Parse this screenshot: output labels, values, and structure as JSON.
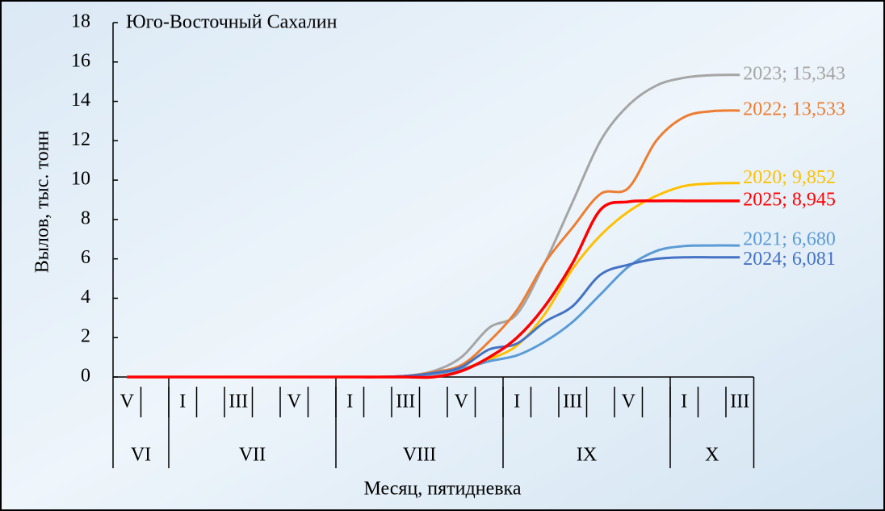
{
  "chart_data": {
    "type": "line",
    "title": "Юго-Восточный Сахалин",
    "xlabel": "Месяц, пятидневка",
    "ylabel": "Вылов, тыс. тонн",
    "categories": [
      "V",
      null,
      "I",
      null,
      "III",
      null,
      "V",
      null,
      "I",
      null,
      "III",
      null,
      "V",
      null,
      "I",
      null,
      "III",
      null,
      "V",
      null,
      "I",
      null,
      "III"
    ],
    "months": [
      "VI",
      "VI",
      "VII",
      "VII",
      "VII",
      "VII",
      "VII",
      "VII",
      "VIII",
      "VIII",
      "VIII",
      "VIII",
      "VIII",
      "VIII",
      "IX",
      "IX",
      "IX",
      "IX",
      "IX",
      "IX",
      "X",
      "X",
      "X"
    ],
    "ylim": [
      0,
      18
    ],
    "yticks": [
      0,
      2,
      4,
      6,
      8,
      10,
      12,
      14,
      16,
      18
    ],
    "series": [
      {
        "label": "2023; 15,343",
        "color": "#a5a5a5",
        "values": [
          0,
          0,
          0,
          0,
          0,
          0,
          0,
          0,
          0,
          0,
          0.05,
          0.3,
          1.0,
          2.5,
          3.2,
          5.8,
          8.9,
          12.0,
          13.8,
          14.8,
          15.2,
          15.33,
          15.343
        ]
      },
      {
        "label": "2022; 13,533",
        "color": "#ed7d31",
        "values": [
          0,
          0,
          0,
          0,
          0,
          0,
          0,
          0,
          0,
          0,
          0.05,
          0.25,
          0.6,
          1.8,
          3.4,
          5.8,
          7.6,
          9.3,
          9.6,
          12.0,
          13.2,
          13.5,
          13.533
        ]
      },
      {
        "label": "2020; 9,852",
        "color": "#ffc000",
        "values": [
          0,
          0,
          0,
          0,
          0,
          0,
          0,
          0,
          0,
          0,
          0.03,
          0.15,
          0.4,
          0.9,
          1.6,
          3.2,
          5.5,
          7.2,
          8.4,
          9.2,
          9.7,
          9.83,
          9.852
        ]
      },
      {
        "label": "2021; 6,680",
        "color": "#5b9bd5",
        "values": [
          0,
          0,
          0,
          0,
          0,
          0,
          0,
          0,
          0,
          0,
          0.03,
          0.15,
          0.4,
          0.8,
          1.1,
          1.8,
          2.8,
          4.2,
          5.6,
          6.4,
          6.65,
          6.68,
          6.68
        ]
      },
      {
        "label": "2024; 6,081",
        "color": "#4472c4",
        "values": [
          0,
          0,
          0,
          0,
          0,
          0,
          0,
          0,
          0,
          0,
          0.05,
          0.2,
          0.5,
          1.4,
          1.7,
          2.8,
          3.6,
          5.2,
          5.7,
          6.0,
          6.08,
          6.081,
          6.081
        ]
      },
      {
        "label": "2025; 8,945",
        "color": "#ff0000",
        "values": [
          0,
          0,
          0,
          0,
          0,
          0,
          0,
          0,
          0,
          0,
          0,
          0,
          0.3,
          1.0,
          2.0,
          3.6,
          5.8,
          8.5,
          8.9,
          8.945,
          8.945,
          8.945,
          8.945
        ]
      }
    ]
  }
}
